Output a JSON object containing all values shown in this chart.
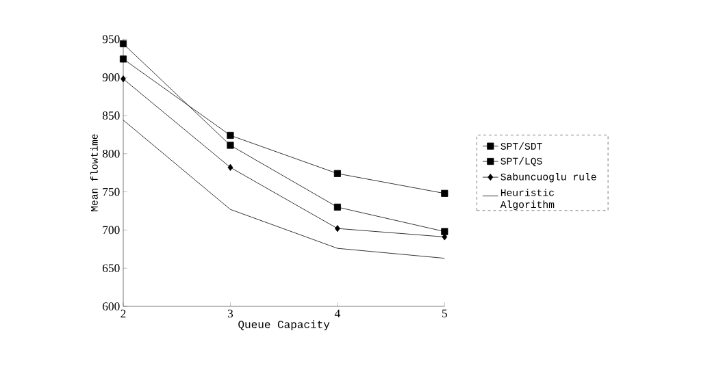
{
  "chart_data": {
    "type": "line",
    "xlabel": "Queue Capacity",
    "ylabel": "Mean flowtime",
    "x": [
      2,
      3,
      4,
      5
    ],
    "xlim": [
      2,
      5
    ],
    "xticks": [
      2,
      3,
      4,
      5
    ],
    "ylim": [
      600,
      950
    ],
    "yticks": [
      600,
      650,
      700,
      750,
      800,
      850,
      900,
      950
    ],
    "legend": "right",
    "line_style": "solid",
    "series": [
      {
        "name": "SPT/SDT",
        "color": "#000000",
        "marker": "square",
        "values": [
          944,
          811,
          730,
          698
        ]
      },
      {
        "name": "SPT/LQS",
        "color": "#000000",
        "marker": "square",
        "values": [
          924,
          824,
          774,
          748
        ]
      },
      {
        "name": "Sabuncuoglu rule",
        "color": "#000000",
        "marker": "diamond",
        "values": [
          898,
          782,
          702,
          691
        ]
      },
      {
        "name": "Heuristic Algorithm",
        "color": "#000000",
        "marker": "none",
        "values": [
          844,
          727,
          676,
          663
        ]
      }
    ]
  }
}
